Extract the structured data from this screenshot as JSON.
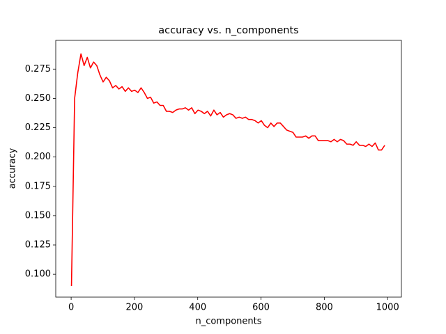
{
  "chart_data": {
    "type": "line",
    "title": "accuracy vs. n_components",
    "xlabel": "n_components",
    "ylabel": "accuracy",
    "series": [
      {
        "color": "#ff0000",
        "x": [
          1,
          11,
          21,
          31,
          41,
          51,
          61,
          71,
          81,
          91,
          101,
          111,
          121,
          131,
          141,
          151,
          161,
          171,
          181,
          191,
          201,
          211,
          221,
          231,
          241,
          251,
          261,
          271,
          281,
          291,
          301,
          311,
          321,
          331,
          341,
          351,
          361,
          371,
          381,
          391,
          401,
          411,
          421,
          431,
          441,
          451,
          461,
          471,
          481,
          491,
          501,
          511,
          521,
          531,
          541,
          551,
          561,
          571,
          581,
          591,
          601,
          611,
          621,
          631,
          641,
          651,
          661,
          671,
          681,
          691,
          701,
          711,
          721,
          731,
          741,
          751,
          761,
          771,
          781,
          791,
          801,
          811,
          821,
          831,
          841,
          851,
          861,
          871,
          881,
          891,
          901,
          911,
          921,
          931,
          941,
          951,
          961,
          971,
          981,
          991
        ],
        "values": [
          0.09,
          0.25,
          0.272,
          0.288,
          0.278,
          0.285,
          0.276,
          0.281,
          0.278,
          0.27,
          0.264,
          0.268,
          0.265,
          0.259,
          0.261,
          0.258,
          0.26,
          0.256,
          0.259,
          0.256,
          0.257,
          0.255,
          0.259,
          0.255,
          0.25,
          0.251,
          0.246,
          0.247,
          0.244,
          0.244,
          0.239,
          0.239,
          0.238,
          0.24,
          0.241,
          0.241,
          0.242,
          0.24,
          0.242,
          0.237,
          0.24,
          0.239,
          0.237,
          0.239,
          0.235,
          0.24,
          0.236,
          0.238,
          0.234,
          0.236,
          0.237,
          0.236,
          0.233,
          0.234,
          0.233,
          0.234,
          0.232,
          0.232,
          0.231,
          0.229,
          0.231,
          0.227,
          0.225,
          0.229,
          0.226,
          0.229,
          0.229,
          0.226,
          0.223,
          0.222,
          0.221,
          0.217,
          0.217,
          0.217,
          0.218,
          0.216,
          0.218,
          0.218,
          0.214,
          0.214,
          0.214,
          0.214,
          0.213,
          0.215,
          0.213,
          0.215,
          0.214,
          0.211,
          0.211,
          0.21,
          0.213,
          0.21,
          0.21,
          0.209,
          0.211,
          0.209,
          0.212,
          0.206,
          0.206,
          0.21
        ]
      }
    ],
    "xlim": [
      -48.65,
      1043.65
    ],
    "ylim": [
      0.0805,
      0.2995
    ],
    "xticks": [
      0,
      200,
      400,
      600,
      800,
      1000
    ],
    "yticks": [
      {
        "value": 0.1,
        "label": "0.100"
      },
      0.125,
      {
        "value": 0.15,
        "label": "0.150"
      },
      0.175,
      {
        "value": 0.2,
        "label": "0.200"
      },
      0.225,
      {
        "value": 0.25,
        "label": "0.250"
      },
      0.275
    ]
  }
}
